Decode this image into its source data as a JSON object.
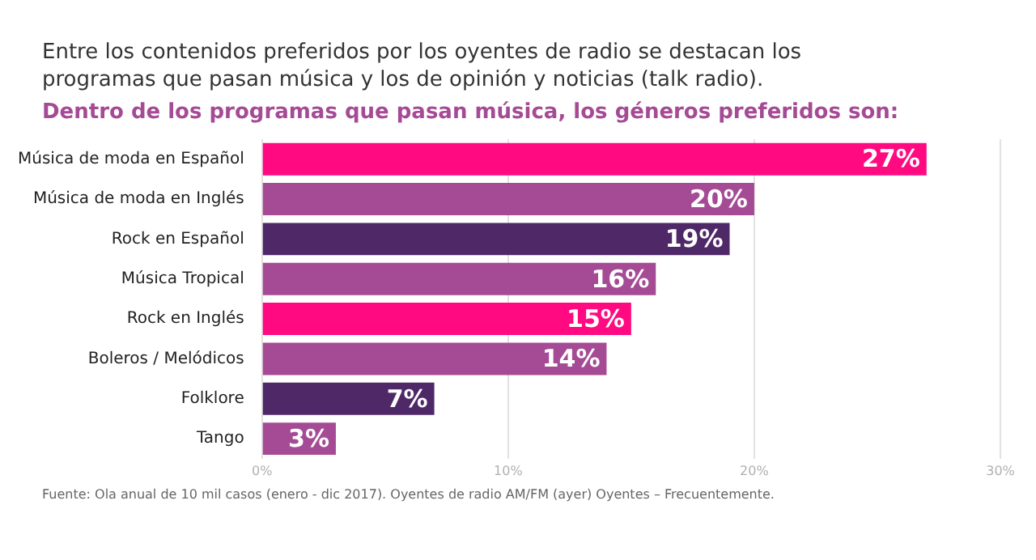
{
  "chart_data": {
    "type": "bar",
    "orientation": "horizontal",
    "title": "Entre los contenidos preferidos por los oyentes de radio se destacan los programas que pasan música y los de opinión y noticias (talk radio).",
    "subtitle": "Dentro de los programas que pasan música, los géneros preferidos son:",
    "categories": [
      "Música de moda en Español",
      "Música de moda en Inglés",
      "Rock en Español",
      "Música Tropical",
      "Rock en Inglés",
      "Boleros / Melódicos",
      "Folklore",
      "Tango"
    ],
    "values": [
      27,
      20,
      19,
      16,
      15,
      14,
      7,
      3
    ],
    "colors": [
      "#ff0a80",
      "#a54b95",
      "#4f2868",
      "#a54b95",
      "#ff0a80",
      "#a54b95",
      "#4f2868",
      "#a54b95"
    ],
    "value_labels": [
      "27%",
      "20%",
      "19%",
      "16%",
      "15%",
      "14%",
      "7%",
      "3%"
    ],
    "xlim": [
      0,
      30
    ],
    "xticks": [
      {
        "value": 0,
        "label": "0%"
      },
      {
        "value": 10,
        "label": "10%"
      },
      {
        "value": 20,
        "label": "20%"
      },
      {
        "value": 30,
        "label": "30%"
      }
    ],
    "grid": "x",
    "annotations": [
      "Fuente: Ola anual de 10 mil casos (enero - dic 2017). Oyentes de radio AM/FM (ayer) Oyentes – Frecuentemente."
    ]
  }
}
